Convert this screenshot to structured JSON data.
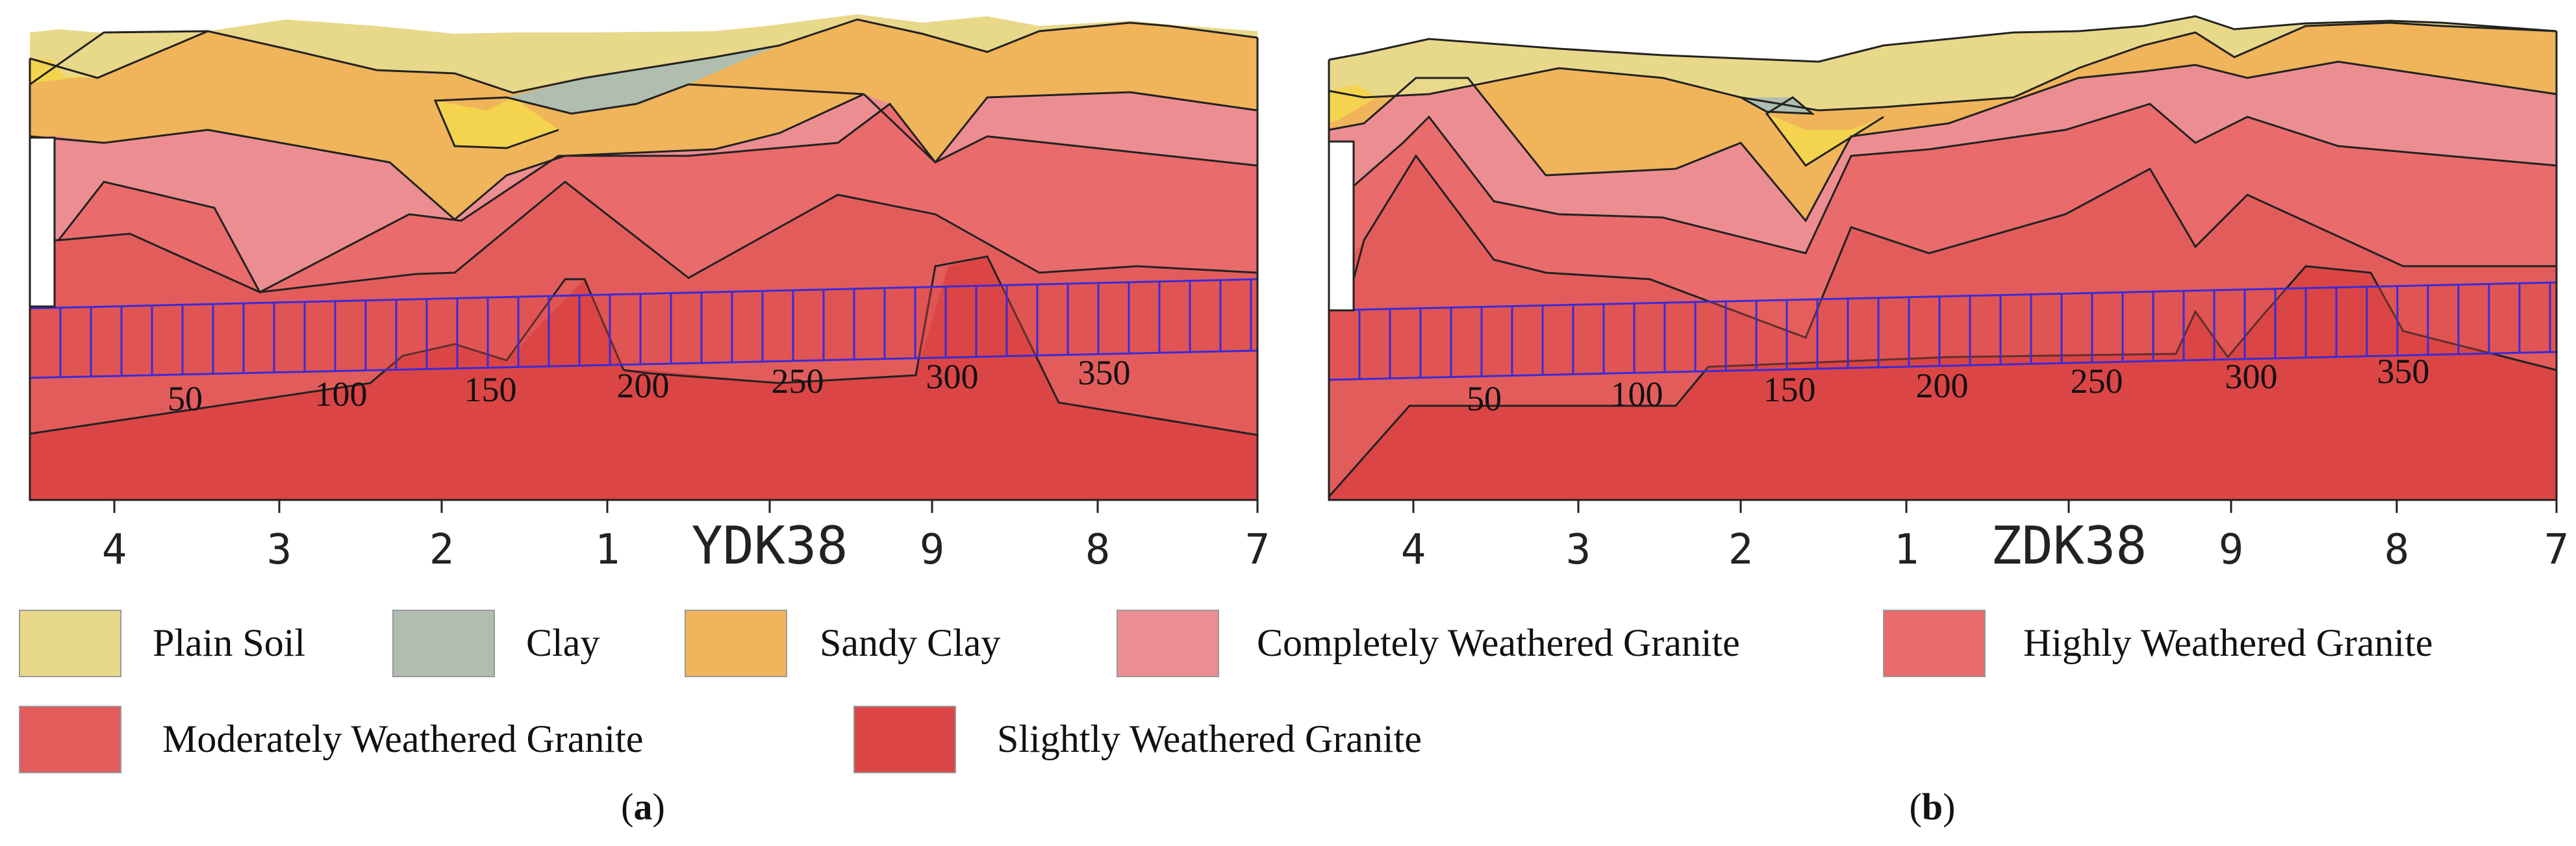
{
  "panels": [
    {
      "id": "a",
      "caption_letter": "a",
      "station_label": "YDK38",
      "borehole_labels": [
        "4",
        "3",
        "2",
        "1",
        "9",
        "8",
        "7"
      ],
      "chainage_labels": [
        "50",
        "100",
        "150",
        "200",
        "250",
        "300",
        "350"
      ]
    },
    {
      "id": "b",
      "caption_letter": "b",
      "station_label": "ZDK38",
      "borehole_labels": [
        "4",
        "3",
        "2",
        "1",
        "9",
        "8",
        "7"
      ],
      "chainage_labels": [
        "50",
        "100",
        "150",
        "200",
        "250",
        "300",
        "350"
      ]
    }
  ],
  "legend": [
    {
      "key": "plain",
      "label": "Plain Soil",
      "color": "#e8d889"
    },
    {
      "key": "clay",
      "label": "Clay",
      "color": "#afbeaf"
    },
    {
      "key": "sandy",
      "label": "Sandy Clay",
      "color": "#f0b45a"
    },
    {
      "key": "cwg",
      "label": "Completely Weathered Granite",
      "color": "#ec8e91"
    },
    {
      "key": "hwg",
      "label": "Highly Weathered Granite",
      "color": "#ea6b6b"
    },
    {
      "key": "mwg",
      "label": "Moderately Weathered Granite",
      "color": "#e35c5c"
    },
    {
      "key": "swg",
      "label": "Slightly Weathered Granite",
      "color": "#dc4545"
    }
  ],
  "colors": {
    "tunnel_lines": "#3a2bd6",
    "outline": "#222222",
    "yellow_lens": "#f4d44e"
  }
}
